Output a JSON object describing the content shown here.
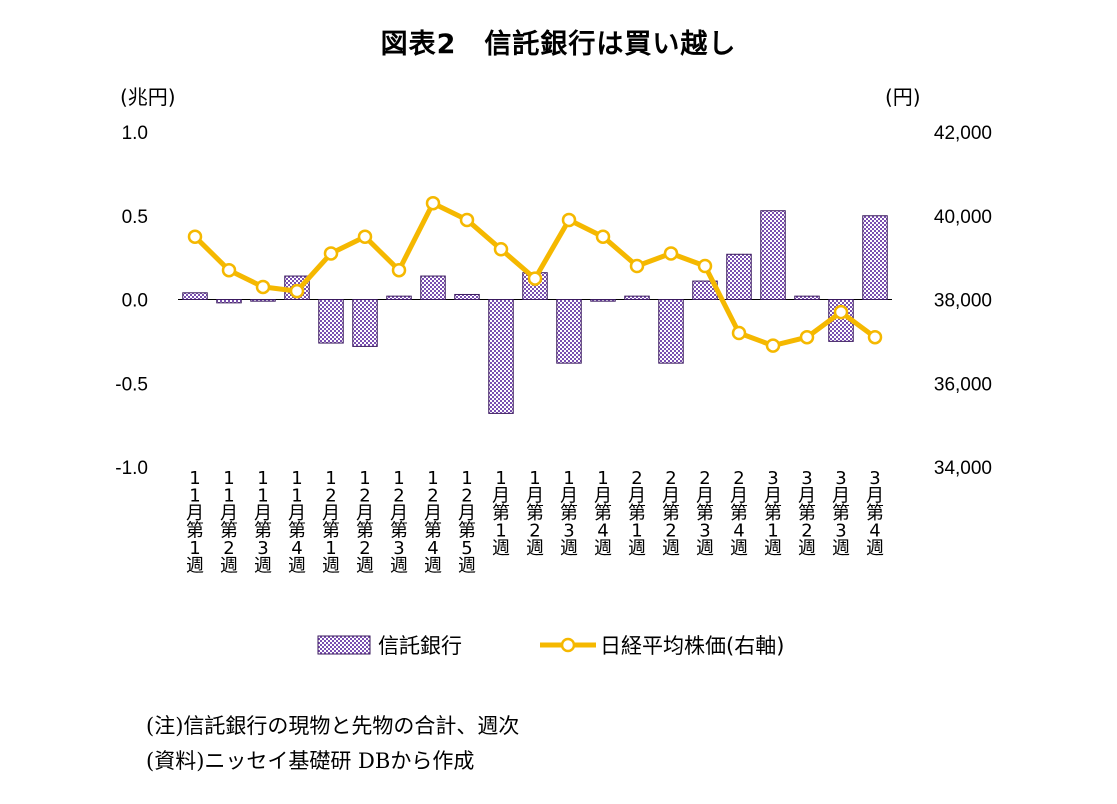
{
  "title": "図表2　信託銀行は買い越し",
  "notes": [
    "(注)信託銀行の現物と先物の合計、週次",
    "(資料)ニッセイ基礎研 DBから作成"
  ],
  "colors": {
    "bar_fill": "#8e6bbf",
    "bar_stroke": "#3a1a5e",
    "line": "#f5b800",
    "marker_fill": "#ffffff"
  },
  "chart_data": {
    "type": "bar+line",
    "categories": [
      "11月第1週",
      "11月第2週",
      "11月第3週",
      "11月第4週",
      "12月第1週",
      "12月第2週",
      "12月第3週",
      "12月第4週",
      "12月第5週",
      "1月第1週",
      "1月第2週",
      "1月第3週",
      "1月第4週",
      "2月第1週",
      "2月第2週",
      "2月第3週",
      "2月第4週",
      "3月第1週",
      "3月第2週",
      "3月第3週",
      "3月第4週"
    ],
    "left_axis": {
      "unit": "(兆円)",
      "ylim": [
        -1.0,
        1.0
      ],
      "ticks": [
        "1.0",
        "0.5",
        "0.0",
        "-0.5",
        "-1.0"
      ],
      "tick_values": [
        1.0,
        0.5,
        0.0,
        -0.5,
        -1.0
      ]
    },
    "right_axis": {
      "unit": "(円)",
      "ylim": [
        34000,
        42000
      ],
      "ticks": [
        "42,000",
        "40,000",
        "38,000",
        "36,000",
        "34,000"
      ],
      "tick_values": [
        42000,
        40000,
        38000,
        36000,
        34000
      ]
    },
    "series": [
      {
        "name": "信託銀行",
        "type": "bar",
        "axis": "left",
        "values": [
          0.04,
          -0.02,
          -0.01,
          0.14,
          -0.26,
          -0.28,
          0.02,
          0.14,
          0.03,
          -0.68,
          0.16,
          -0.38,
          -0.01,
          0.02,
          -0.38,
          0.11,
          0.27,
          0.53,
          0.02,
          -0.25,
          0.5
        ]
      },
      {
        "name": "日経平均株価(右軸)",
        "type": "line",
        "axis": "right",
        "values": [
          39500,
          38700,
          38300,
          38200,
          39100,
          39500,
          38700,
          40300,
          39900,
          39200,
          38500,
          39900,
          39500,
          38800,
          39100,
          38800,
          37200,
          36900,
          37100,
          37700,
          37100
        ]
      }
    ],
    "grid": false,
    "legend_position": "bottom"
  }
}
